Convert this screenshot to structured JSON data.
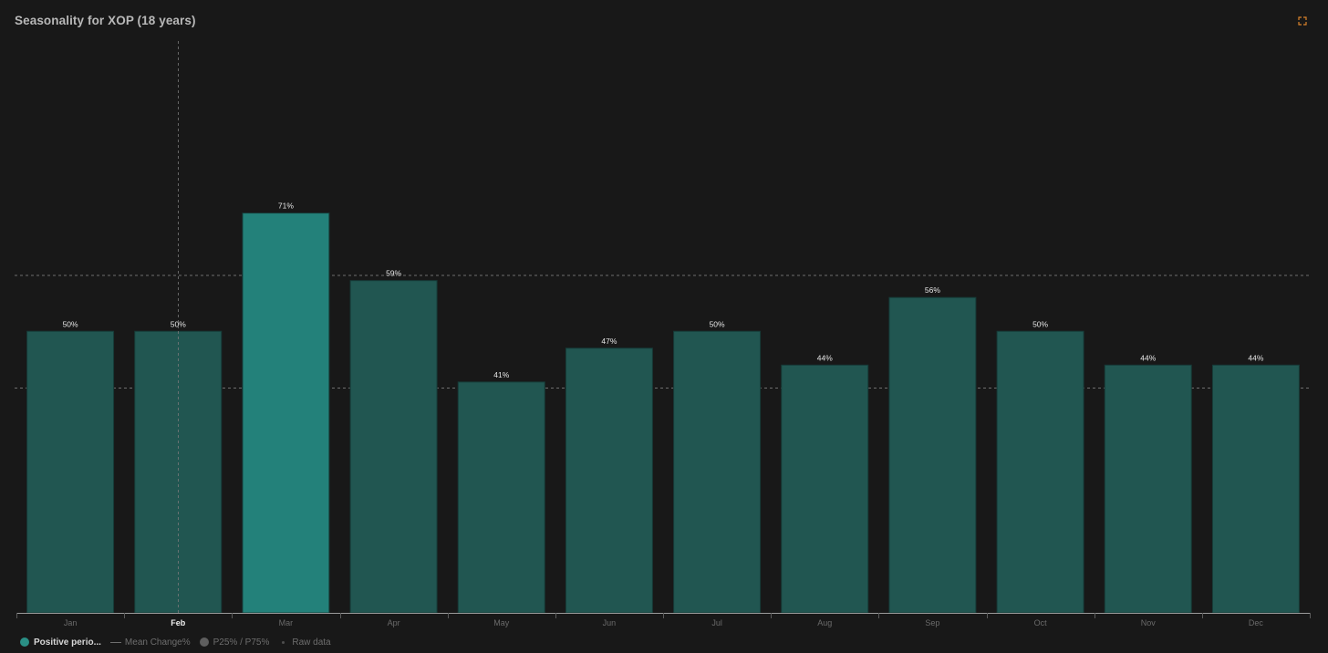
{
  "title": "Seasonality for XOP (18 years)",
  "icons": {
    "expand": "expand-icon"
  },
  "colors": {
    "background": "#181818",
    "bar": "#215651",
    "bar_highlight": "#23817a",
    "bar_stroke": "#163a37",
    "axis": "#9a9a9a",
    "reference_line": "#8a8a8a",
    "crosshair": "#7a7a7a",
    "legend_positive": "#2a8f85",
    "expand_icon": "#d9822b"
  },
  "legend": {
    "positive": "Positive perio...",
    "mean": "Mean Change%",
    "percentile": "P25% / P75%",
    "raw": "Raw data"
  },
  "chart_data": {
    "type": "bar",
    "title": "Seasonality for XOP (18 years)",
    "xlabel": "",
    "ylabel": "",
    "categories": [
      "Jan",
      "Feb",
      "Mar",
      "Apr",
      "May",
      "Jun",
      "Jul",
      "Aug",
      "Sep",
      "Oct",
      "Nov",
      "Dec"
    ],
    "series": [
      {
        "name": "Positive perio...",
        "values": [
          50,
          50,
          71,
          59,
          41,
          47,
          50,
          44,
          56,
          50,
          44,
          44
        ]
      }
    ],
    "data_labels": [
      "50%",
      "50%",
      "71%",
      "59%",
      "41%",
      "47%",
      "50%",
      "44%",
      "56%",
      "50%",
      "44%",
      "44%"
    ],
    "highlighted_category": "Mar",
    "crosshair_category": "Feb",
    "reference_lines": [
      60,
      40
    ],
    "ylim": [
      0,
      96
    ],
    "grid": false,
    "legend_position": "bottom-left"
  }
}
